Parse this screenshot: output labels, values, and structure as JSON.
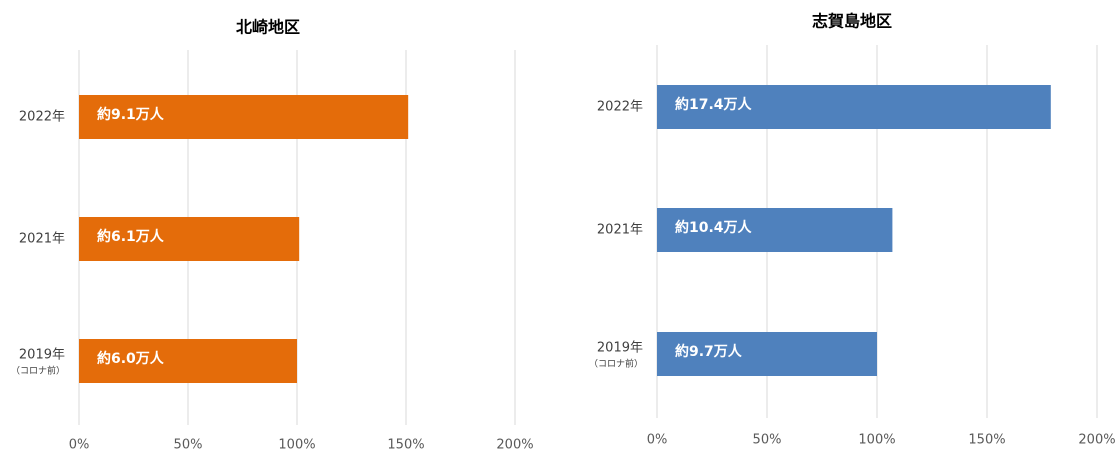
{
  "chart_data": [
    {
      "type": "bar",
      "orientation": "horizontal",
      "title": "北崎地区",
      "categories": [
        "2022年",
        "2021年",
        "2019年"
      ],
      "category_sublabels": [
        null,
        null,
        "（コロナ前）"
      ],
      "values": [
        151,
        101,
        100
      ],
      "bar_labels": [
        "約9.1万人",
        "約6.1万人",
        "約6.0万人"
      ],
      "color": "#e46c0a",
      "grid": true,
      "xlim": [
        0,
        200
      ],
      "xticks": [
        {
          "value": 0,
          "label": "0%"
        },
        {
          "value": 50,
          "label": "50%"
        },
        {
          "value": 100,
          "label": "100%"
        },
        {
          "value": 150,
          "label": "150%"
        },
        {
          "value": 200,
          "label": "200%"
        }
      ]
    },
    {
      "type": "bar",
      "orientation": "horizontal",
      "title": "志賀島地区",
      "categories": [
        "2022年",
        "2021年",
        "2019年"
      ],
      "category_sublabels": [
        null,
        null,
        "（コロナ前）"
      ],
      "values": [
        179,
        107,
        100
      ],
      "bar_labels": [
        "約17.4万人",
        "約10.4万人",
        "約9.7万人"
      ],
      "color": "#4f81bd",
      "grid": true,
      "xlim": [
        0,
        200
      ],
      "xticks": [
        {
          "value": 0,
          "label": "0%"
        },
        {
          "value": 50,
          "label": "50%"
        },
        {
          "value": 100,
          "label": "100%"
        },
        {
          "value": 150,
          "label": "150%"
        },
        {
          "value": 200,
          "label": "200%"
        }
      ]
    }
  ]
}
